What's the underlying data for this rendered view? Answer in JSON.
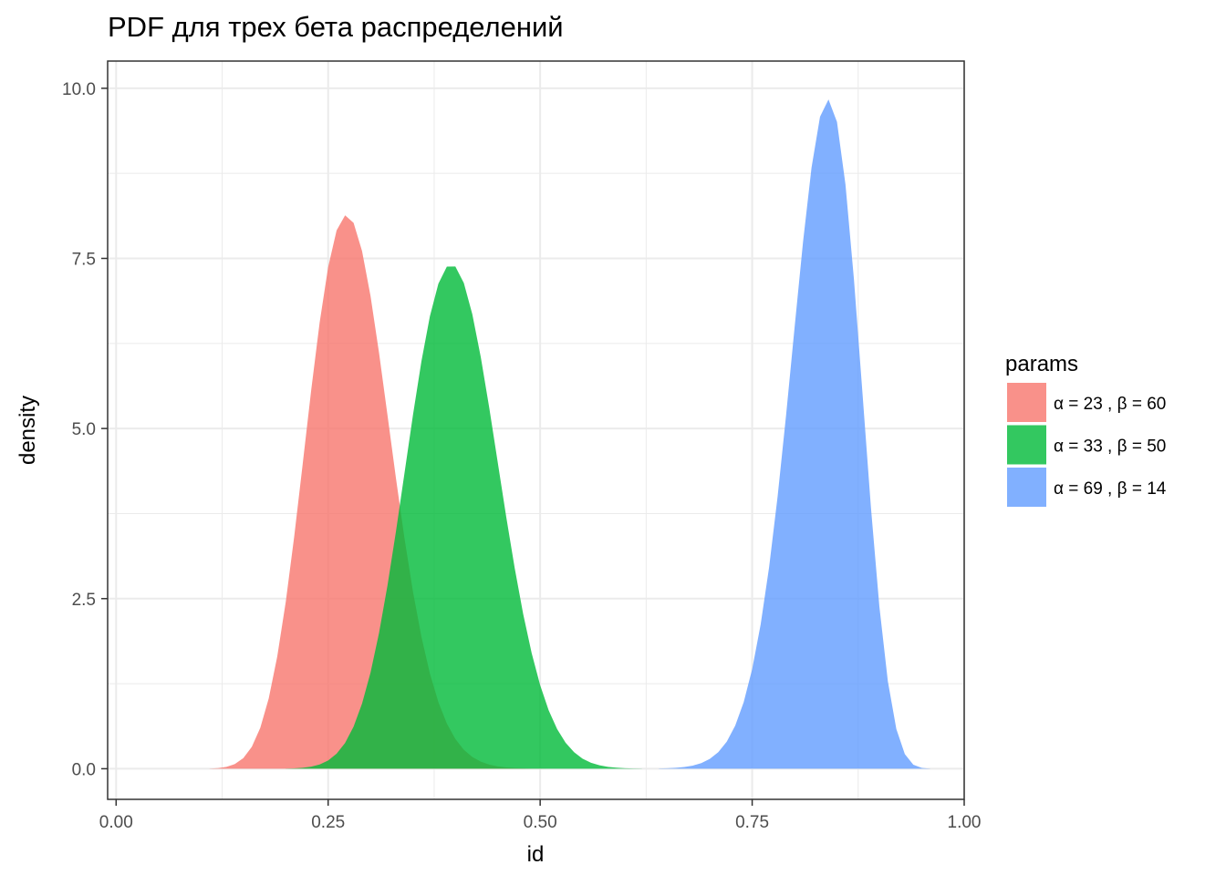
{
  "chart_data": {
    "type": "area",
    "title": "PDF для трех бета распределений",
    "xlabel": "id",
    "ylabel": "density",
    "xlim": [
      -0.01,
      1.0
    ],
    "ylim": [
      -0.45,
      10.4
    ],
    "x_ticks": [
      0.0,
      0.25,
      0.5,
      0.75,
      1.0
    ],
    "x_tick_labels": [
      "0.00",
      "0.25",
      "0.50",
      "0.75",
      "1.00"
    ],
    "y_ticks": [
      0.0,
      2.5,
      5.0,
      7.5,
      10.0
    ],
    "y_tick_labels": [
      "0.0",
      "2.5",
      "5.0",
      "7.5",
      "10.0"
    ],
    "grid": true,
    "legend": {
      "title": "params",
      "placement": "right"
    },
    "series": [
      {
        "name": "α = 23 , β = 60",
        "alpha": 23,
        "beta": 60,
        "color": "#F8766D",
        "x_range": [
          0.11,
          0.52
        ]
      },
      {
        "name": "α = 33 , β = 50",
        "alpha": 33,
        "beta": 50,
        "color": "#00BA38",
        "x_range": [
          0.2,
          0.62
        ]
      },
      {
        "name": "α = 69 , β = 14",
        "alpha": 69,
        "beta": 14,
        "color": "#619CFF",
        "x_range": [
          0.64,
          0.96
        ]
      }
    ],
    "fill_opacity": 0.8
  }
}
